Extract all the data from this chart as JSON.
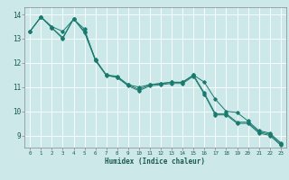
{
  "title": "",
  "xlabel": "Humidex (Indice chaleur)",
  "ylabel": "",
  "background_color": "#cde8e8",
  "grid_color": "#ffffff",
  "line_color": "#1a7a6e",
  "xlim": [
    -0.5,
    23.5
  ],
  "ylim": [
    8.5,
    14.3
  ],
  "yticks": [
    9,
    10,
    11,
    12,
    13,
    14
  ],
  "xticks": [
    0,
    1,
    2,
    3,
    4,
    5,
    6,
    7,
    8,
    9,
    10,
    11,
    12,
    13,
    14,
    15,
    16,
    17,
    18,
    19,
    20,
    21,
    22,
    23
  ],
  "series": [
    [
      13.3,
      13.9,
      13.5,
      13.3,
      13.8,
      13.4,
      12.1,
      11.5,
      11.4,
      11.1,
      10.9,
      11.1,
      11.15,
      11.2,
      11.2,
      11.5,
      11.2,
      10.5,
      10.0,
      9.95,
      9.6,
      9.2,
      9.1,
      8.7
    ],
    [
      13.3,
      13.9,
      13.45,
      13.05,
      13.82,
      13.3,
      12.15,
      11.5,
      11.45,
      11.1,
      11.0,
      11.1,
      11.15,
      11.2,
      11.2,
      11.5,
      10.75,
      9.9,
      9.9,
      9.55,
      9.55,
      9.15,
      9.05,
      8.65
    ],
    [
      13.3,
      13.9,
      13.45,
      13.0,
      13.82,
      13.25,
      12.1,
      11.48,
      11.4,
      11.05,
      10.85,
      11.05,
      11.1,
      11.15,
      11.15,
      11.45,
      10.7,
      9.85,
      9.85,
      9.5,
      9.5,
      9.1,
      9.0,
      8.6
    ]
  ]
}
